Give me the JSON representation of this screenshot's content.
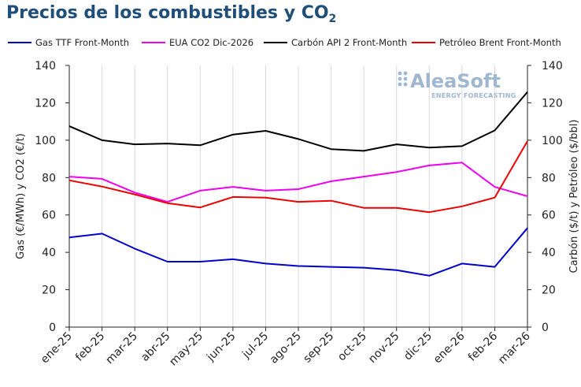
{
  "title": {
    "text": "Precios de los combustibles y CO",
    "subscript": "2"
  },
  "logo": {
    "name": "AleaSoft",
    "tagline": "ENERGY FORECASTING"
  },
  "chart_data": {
    "type": "line",
    "title": "Precios de los combustibles y CO2",
    "categories": [
      "ene-25",
      "feb-25",
      "mar-25",
      "abr-25",
      "may-25",
      "jun-25",
      "jul-25",
      "ago-25",
      "sep-25",
      "oct-25",
      "nov-25",
      "dic-25",
      "ene-26",
      "feb-26",
      "mar-26"
    ],
    "ylabel_left": "Gas (€/MWh) y CO2 (€/t)",
    "ylabel_right": "Carbón ($/t) y Petróleo ($/bbl)",
    "ylim_left": [
      0,
      140
    ],
    "ylim_right": [
      0,
      140
    ],
    "yticks": [
      0,
      20,
      40,
      60,
      80,
      100,
      120,
      140
    ],
    "grid": "vertical",
    "legend_position": "top",
    "series": [
      {
        "name": "Gas TTF Front-Month",
        "axis": "left",
        "color": "#0000cc",
        "values": [
          48,
          50,
          42,
          35,
          35,
          36.3,
          34,
          32.7,
          32.2,
          31.8,
          30.5,
          27.5,
          34,
          32.2,
          53
        ]
      },
      {
        "name": "EUA CO2 Dic-2026",
        "axis": "left",
        "color": "#ee00ee",
        "values": [
          80.5,
          79.3,
          72,
          67,
          73,
          75,
          73,
          73.8,
          78,
          80.5,
          83,
          86.5,
          88,
          75,
          70
        ]
      },
      {
        "name": "Carbón API 2 Front-Month",
        "axis": "right",
        "color": "#000000",
        "values": [
          107.5,
          100,
          97.8,
          98.2,
          97.3,
          103,
          105,
          100.6,
          95.2,
          94.3,
          97.8,
          96,
          96.8,
          105.2,
          125.8
        ]
      },
      {
        "name": "Petróleo Brent Front-Month",
        "axis": "right",
        "color": "#ee0000",
        "values": [
          78.5,
          75.2,
          71,
          66.3,
          64,
          69.6,
          69.3,
          67,
          67.6,
          63.8,
          63.8,
          61.5,
          64.6,
          69.3,
          99.5
        ]
      }
    ]
  }
}
